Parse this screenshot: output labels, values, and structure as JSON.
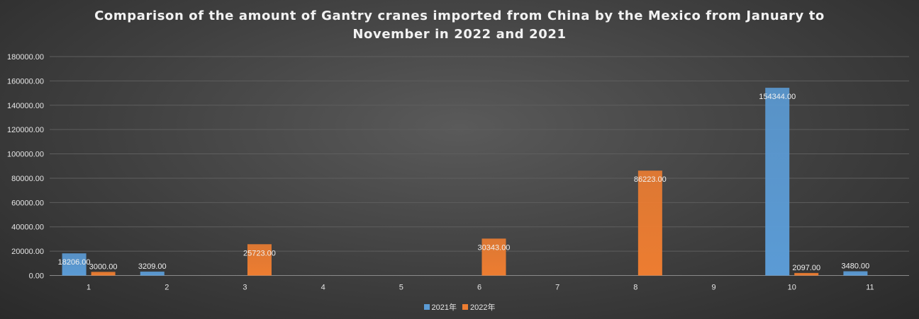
{
  "chart_data": {
    "type": "bar",
    "title_lines": [
      "Comparison of the amount of Gantry cranes imported from China by the Mexico from January to",
      "November in 2022 and 2021"
    ],
    "categories": [
      "1",
      "2",
      "3",
      "4",
      "5",
      "6",
      "7",
      "8",
      "9",
      "10",
      "11"
    ],
    "series": [
      {
        "name": "2021年",
        "color": "#5b9bd5",
        "values": [
          18206.0,
          3209.0,
          null,
          null,
          null,
          null,
          null,
          null,
          null,
          154344.0,
          3480.0
        ],
        "labels": [
          "18206.00",
          "3209.00",
          "",
          "",
          "",
          "",
          "",
          "",
          "",
          "154344.00",
          "3480.00"
        ]
      },
      {
        "name": "2022年",
        "color": "#ed7d31",
        "values": [
          3000.0,
          null,
          25723.0,
          null,
          null,
          30343.0,
          null,
          86223.0,
          null,
          2097.0,
          null
        ],
        "labels": [
          "3000.00",
          "",
          "25723.00",
          "",
          "",
          "30343.00",
          "",
          "86223.00",
          "",
          "2097.00",
          ""
        ]
      }
    ],
    "ylim": [
      0,
      180000
    ],
    "yticks": [
      0,
      20000,
      40000,
      60000,
      80000,
      100000,
      120000,
      140000,
      160000,
      180000
    ],
    "ytick_labels": [
      "0.00",
      "20000.00",
      "40000.00",
      "60000.00",
      "80000.00",
      "100000.00",
      "120000.00",
      "140000.00",
      "160000.00",
      "180000.00"
    ],
    "grid": true,
    "legend_position": "bottom-center"
  }
}
